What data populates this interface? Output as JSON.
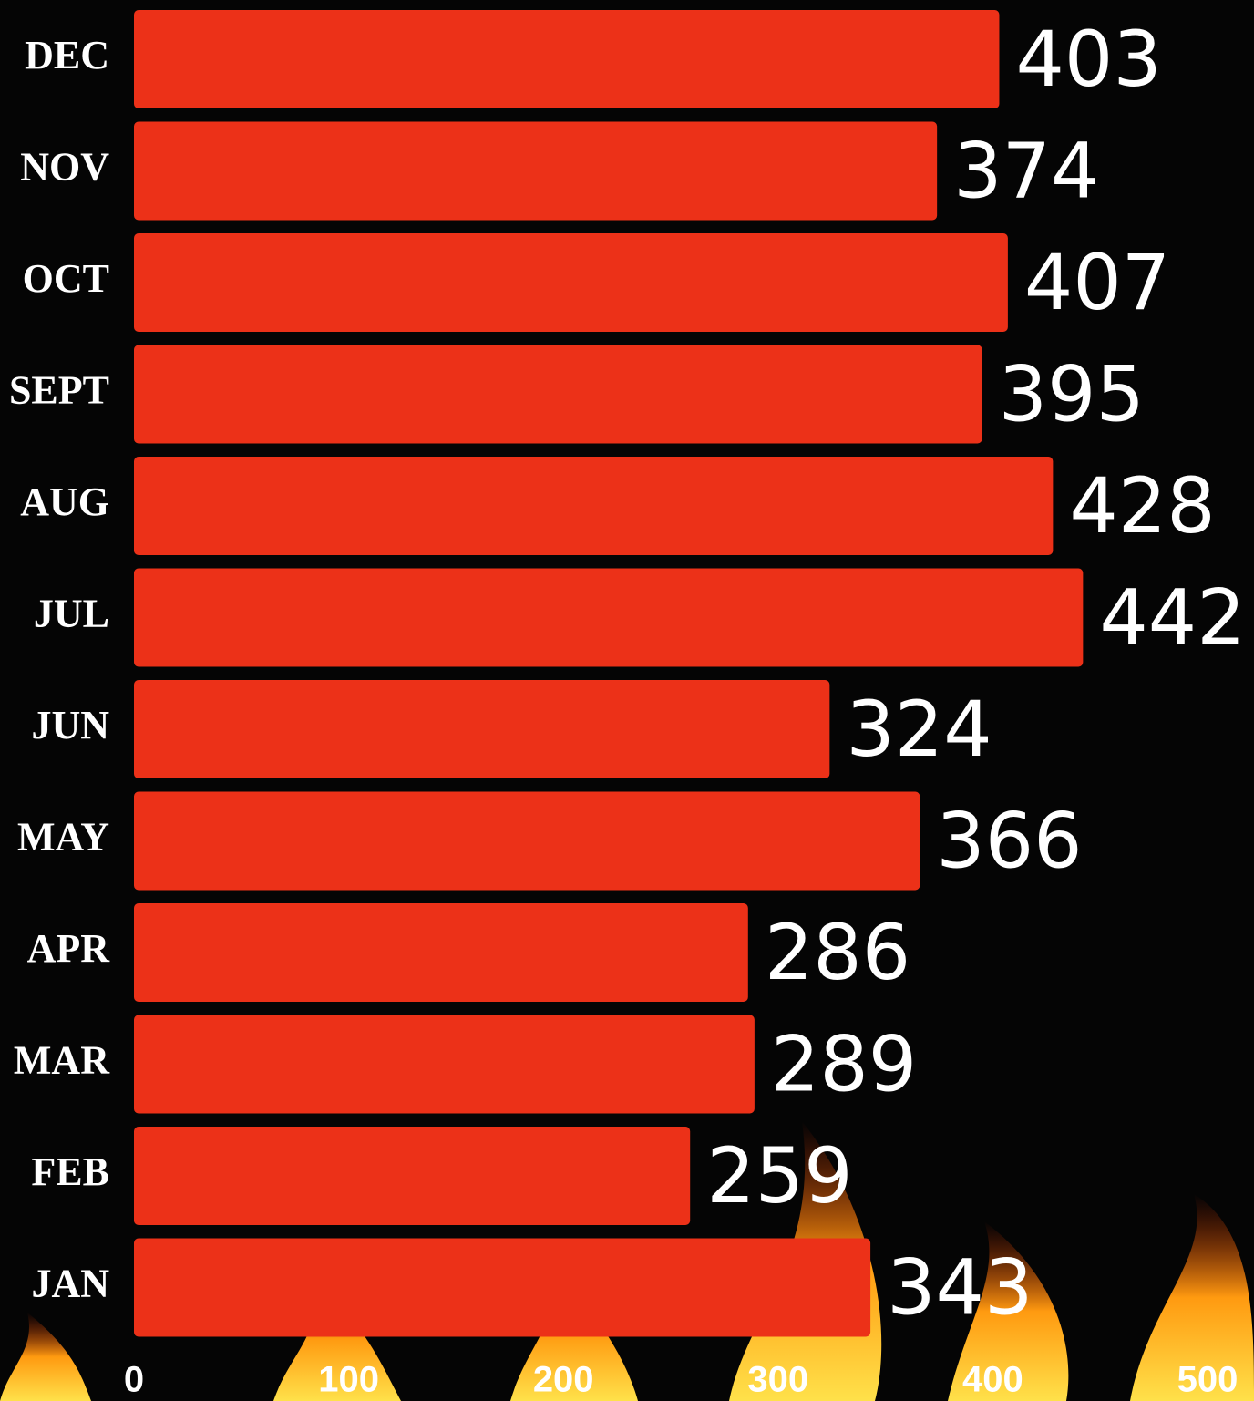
{
  "chart_data": {
    "type": "barh",
    "categories": [
      "DEC",
      "NOV",
      "OCT",
      "SEPT",
      "AUG",
      "JUL",
      "JUN",
      "MAY",
      "APR",
      "MAR",
      "FEB",
      "JAN"
    ],
    "values": [
      403,
      374,
      407,
      395,
      428,
      442,
      324,
      366,
      286,
      289,
      259,
      343
    ],
    "color": "#ec3118",
    "xlim": [
      0,
      500
    ],
    "xticks": [
      0,
      100,
      200,
      300,
      400,
      500
    ],
    "grid": false
  }
}
